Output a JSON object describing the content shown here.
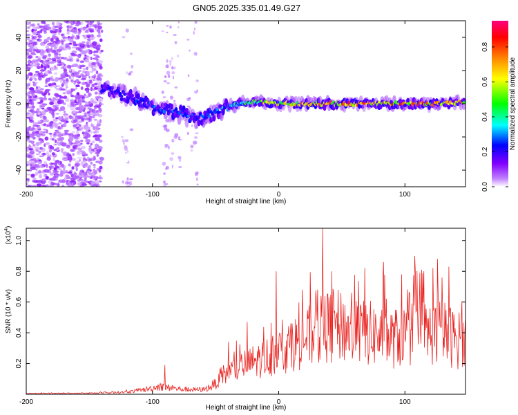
{
  "title": "GN05.2025.335.01.49.G27",
  "chart_data": [
    {
      "type": "heatmap",
      "name": "spectrogram",
      "xlabel": "Height of straight line (km)",
      "ylabel": "Frequency (Hz)",
      "xlim": [
        -200,
        148
      ],
      "ylim": [
        -50,
        50
      ],
      "xticks": [
        -200,
        -100,
        0,
        100
      ],
      "xtick_labels": [
        "-200",
        "-100",
        "0",
        "100"
      ],
      "yticks": [
        -40,
        -20,
        0,
        20,
        40
      ],
      "ytick_labels": [
        "-40",
        "-20",
        "0",
        "20",
        "40"
      ],
      "colorbar": {
        "label": "Normalized spectral amplitude",
        "range": [
          0,
          0.95
        ],
        "ticks": [
          0,
          0.2,
          0.4,
          0.6,
          0.8
        ],
        "tick_labels": [
          "0.0",
          "0.2",
          "0.4",
          "0.6",
          "0.8"
        ],
        "colormap": [
          "#ffffff",
          "#8000ff",
          "#0000ff",
          "#00ffff",
          "#00ff00",
          "#ffff00",
          "#ff8000",
          "#ff0000",
          "#ff0080"
        ]
      },
      "ridge": {
        "x": [
          -140,
          -130,
          -120,
          -110,
          -100,
          -90,
          -80,
          -70,
          -60,
          -50,
          -40,
          -30,
          -20,
          -10,
          0,
          20,
          40,
          60,
          80,
          100,
          120,
          148
        ],
        "frequency": [
          10,
          8,
          5,
          2,
          -2,
          -4,
          -5,
          -8,
          -8,
          -5,
          -2,
          0,
          1,
          1,
          0,
          0,
          0,
          0,
          0,
          0,
          0,
          1
        ],
        "amplitude": [
          0.2,
          0.25,
          0.25,
          0.3,
          0.3,
          0.3,
          0.3,
          0.3,
          0.3,
          0.35,
          0.4,
          0.5,
          0.6,
          0.7,
          0.75,
          0.8,
          0.85,
          0.9,
          0.9,
          0.85,
          0.85,
          0.8
        ]
      },
      "scatter_region": {
        "x": [
          -200,
          -140
        ],
        "frequency": [
          -50,
          50
        ],
        "amplitude": [
          0.02,
          0.12
        ]
      }
    },
    {
      "type": "line",
      "name": "snr",
      "xlabel": "Height of straight line (km)",
      "ylabel": "SNR (10 * v/v)",
      "y_multiplier": "(x10",
      "y_multiplier_exp": "4",
      "y_multiplier_close": ")",
      "xlim": [
        -200,
        148
      ],
      "ylim": [
        0,
        1.08
      ],
      "xticks": [
        -200,
        -100,
        0,
        100
      ],
      "xtick_labels": [
        "-200",
        "-100",
        "0",
        "100"
      ],
      "yticks": [
        0.2,
        0.4,
        0.6,
        0.8,
        1
      ],
      "ytick_labels": [
        "0.2",
        "0.4",
        "0.6",
        "0.8",
        "1.0"
      ],
      "color": "#e8221f",
      "series": [
        {
          "x": [
            -200,
            -180,
            -160,
            -140,
            -120,
            -110,
            -100,
            -95,
            -90,
            -80,
            -70,
            -60,
            -55,
            -50,
            -45,
            -40,
            -30,
            -20,
            -10,
            0,
            10,
            20,
            30,
            40,
            50,
            60,
            70,
            80,
            90,
            100,
            110,
            120,
            130,
            140,
            148
          ],
          "baseline": [
            0.005,
            0.005,
            0.006,
            0.008,
            0.015,
            0.025,
            0.04,
            0.05,
            0.045,
            0.035,
            0.03,
            0.03,
            0.045,
            0.07,
            0.1,
            0.14,
            0.18,
            0.21,
            0.24,
            0.27,
            0.32,
            0.36,
            0.4,
            0.44,
            0.44,
            0.4,
            0.4,
            0.38,
            0.36,
            0.38,
            0.4,
            0.4,
            0.4,
            0.36,
            0.34
          ],
          "peaks": [
            [
              -90,
              0.19
            ],
            [
              -40,
              0.34
            ],
            [
              -25,
              0.47
            ],
            [
              -2,
              0.8
            ],
            [
              35,
              1.08
            ],
            [
              42,
              0.8
            ],
            [
              68,
              0.82
            ],
            [
              83,
              0.86
            ],
            [
              108,
              0.9
            ],
            [
              126,
              0.88
            ],
            [
              135,
              0.83
            ]
          ]
        }
      ]
    }
  ]
}
